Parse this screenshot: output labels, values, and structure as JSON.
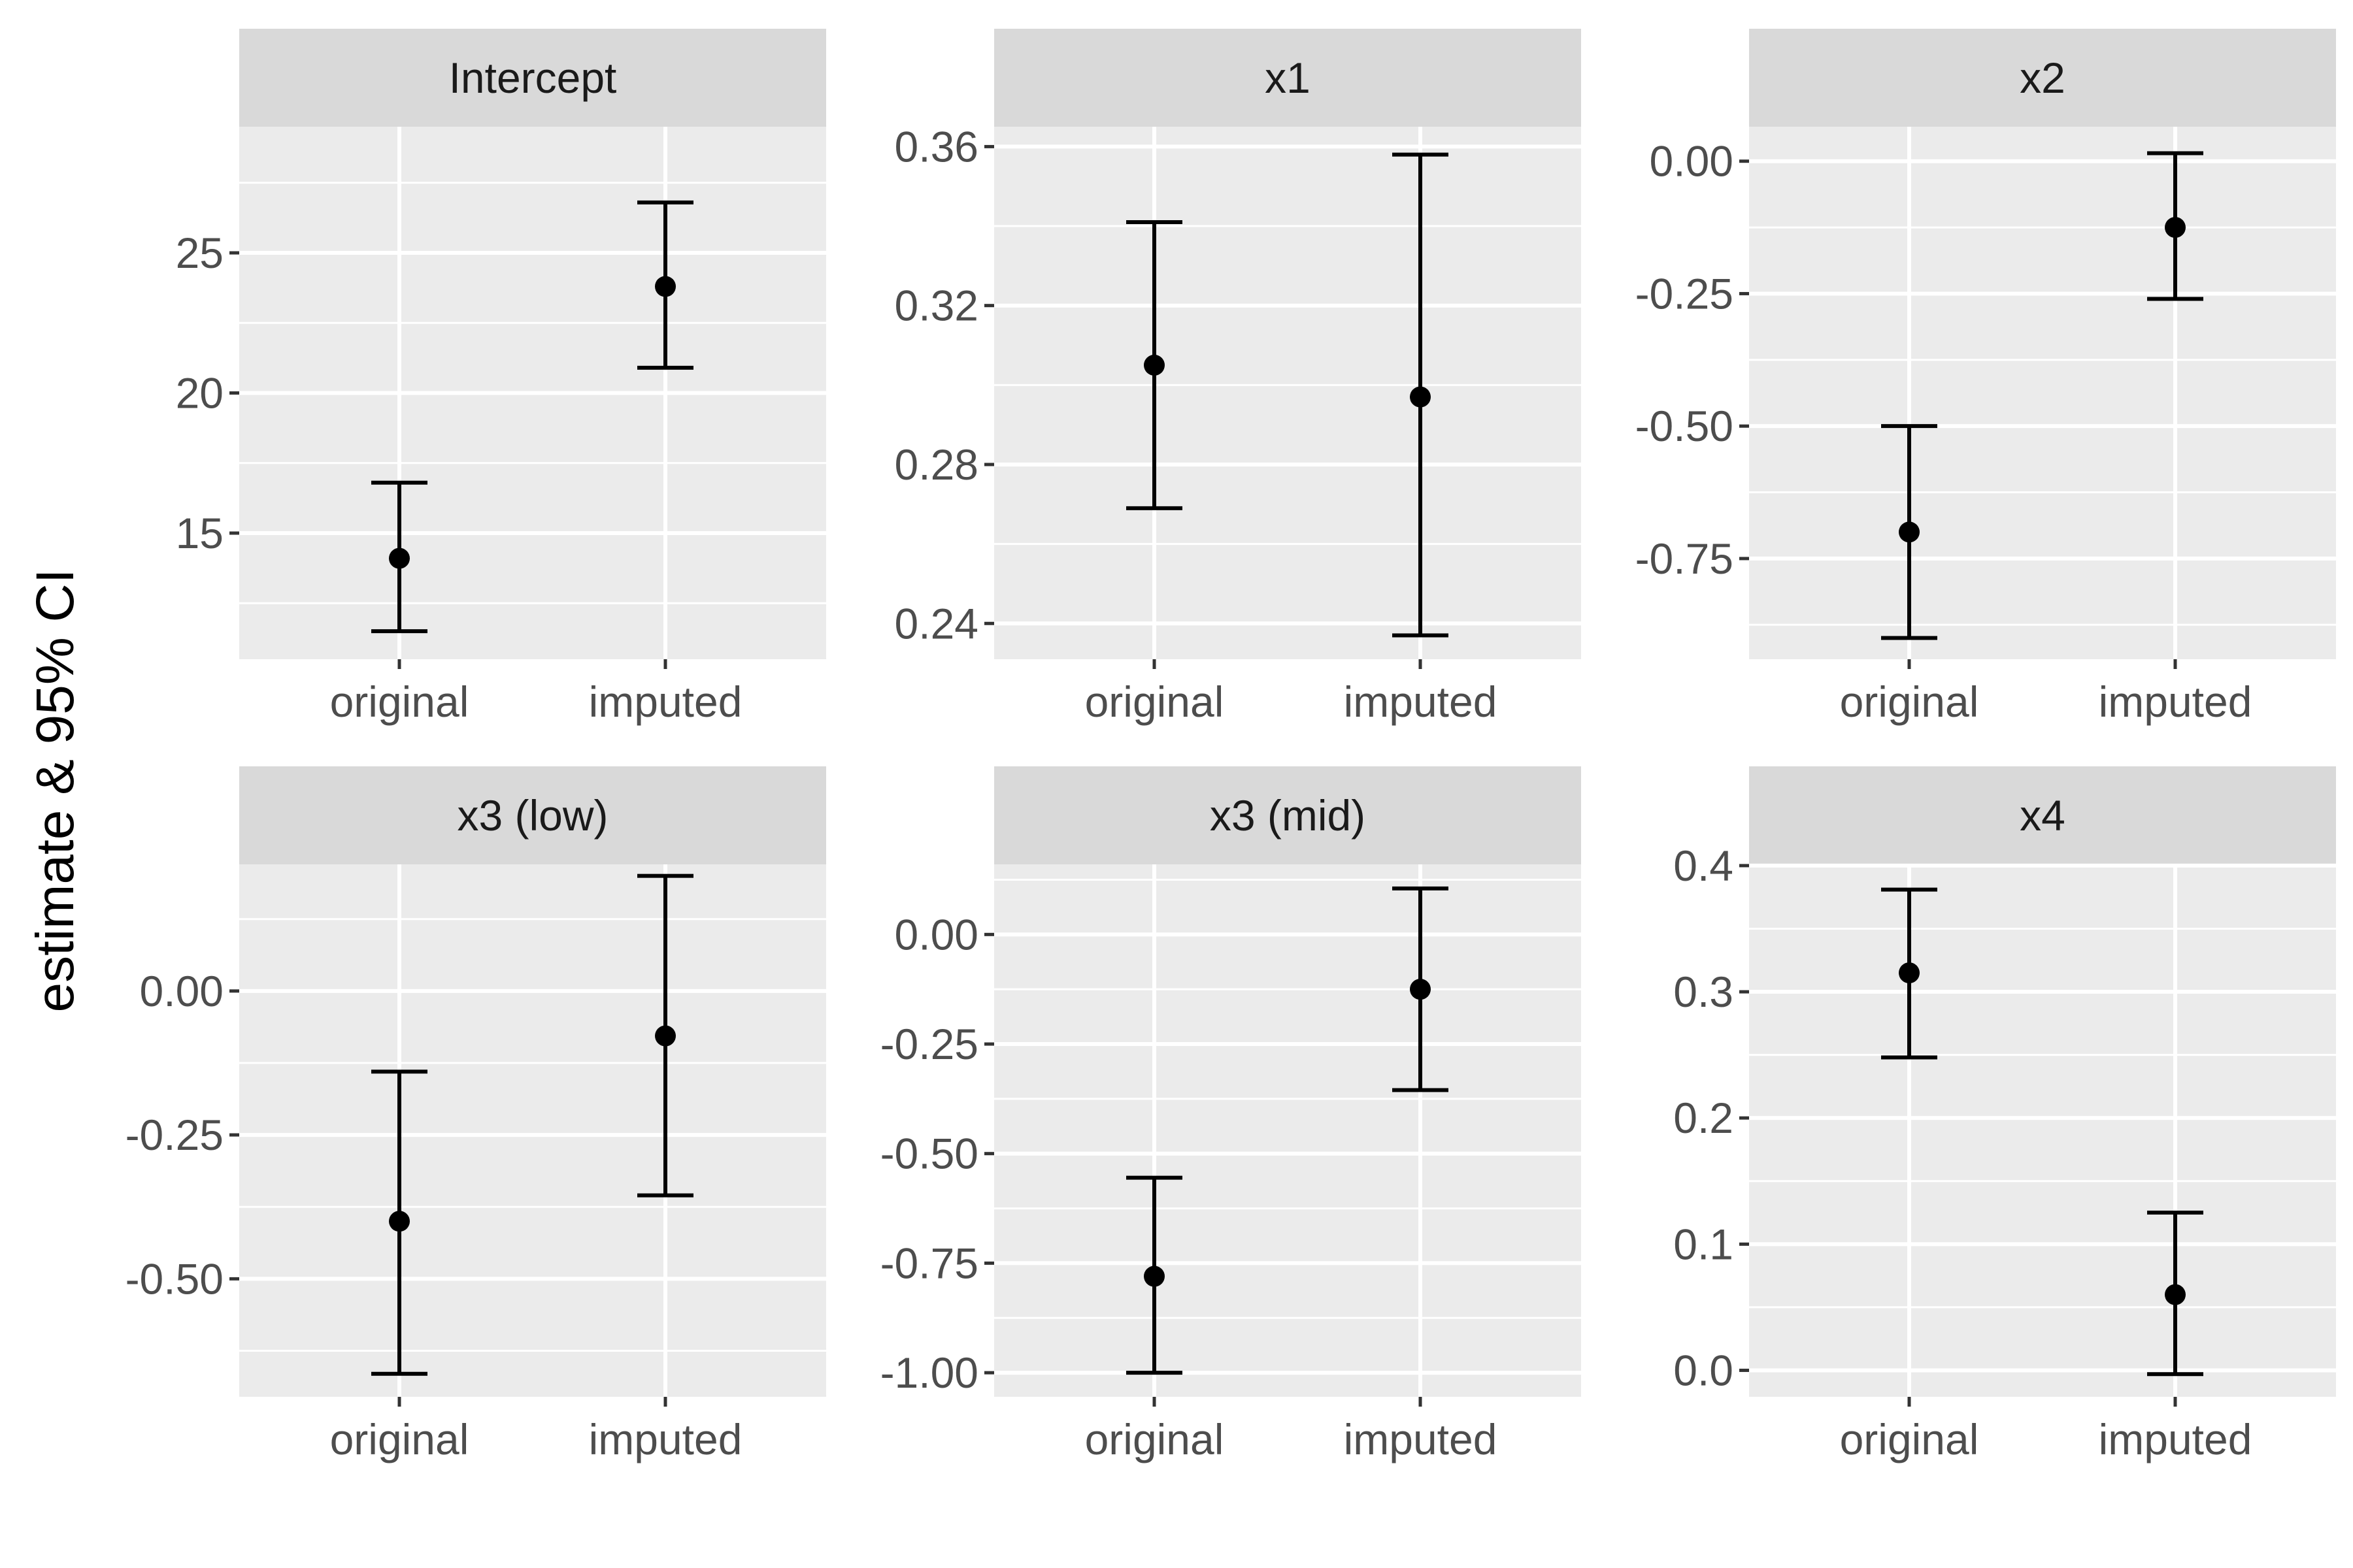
{
  "chart_data": {
    "type": "errorbar",
    "ylabel": "estimate & 95% CI",
    "categories": [
      "original",
      "imputed"
    ],
    "colors": {
      "panel_bg": "#EBEBEB",
      "strip_bg": "#D9D9D9",
      "grid": "#FFFFFF",
      "mark": "#000000"
    },
    "panels": [
      {
        "title": "Intercept",
        "ylim": [
          10.5,
          29.5
        ],
        "yticks": [
          15,
          20,
          25
        ],
        "ytick_labels": [
          "15",
          "20",
          "25"
        ],
        "points": [
          {
            "category": "original",
            "estimate": 14.1,
            "lower": 11.5,
            "upper": 16.8
          },
          {
            "category": "imputed",
            "estimate": 23.8,
            "lower": 20.9,
            "upper": 26.8
          }
        ]
      },
      {
        "title": "x1",
        "ylim": [
          0.231,
          0.365
        ],
        "yticks": [
          0.24,
          0.28,
          0.32,
          0.36
        ],
        "ytick_labels": [
          "0.24",
          "0.28",
          "0.32",
          "0.36"
        ],
        "points": [
          {
            "category": "original",
            "estimate": 0.305,
            "lower": 0.269,
            "upper": 0.341
          },
          {
            "category": "imputed",
            "estimate": 0.297,
            "lower": 0.237,
            "upper": 0.358
          }
        ]
      },
      {
        "title": "x2",
        "ylim": [
          -0.94,
          0.065
        ],
        "yticks": [
          -0.75,
          -0.5,
          -0.25,
          0.0
        ],
        "ytick_labels": [
          "-0.75",
          "-0.50",
          "-0.25",
          "0.00"
        ],
        "points": [
          {
            "category": "original",
            "estimate": -0.7,
            "lower": -0.9,
            "upper": -0.5
          },
          {
            "category": "imputed",
            "estimate": -0.125,
            "lower": -0.26,
            "upper": 0.015
          }
        ]
      },
      {
        "title": "x3 (low)",
        "ylim": [
          -0.705,
          0.22
        ],
        "yticks": [
          -0.5,
          -0.25,
          0.0
        ],
        "ytick_labels": [
          "-0.50",
          "-0.25",
          "0.00"
        ],
        "points": [
          {
            "category": "original",
            "estimate": -0.4,
            "lower": -0.665,
            "upper": -0.14
          },
          {
            "category": "imputed",
            "estimate": -0.078,
            "lower": -0.355,
            "upper": 0.2
          }
        ]
      },
      {
        "title": "x3 (mid)",
        "ylim": [
          -1.055,
          0.16
        ],
        "yticks": [
          -1.0,
          -0.75,
          -0.5,
          -0.25,
          0.0
        ],
        "ytick_labels": [
          "-1.00",
          "-0.75",
          "-0.50",
          "-0.25",
          "0.00"
        ],
        "points": [
          {
            "category": "original",
            "estimate": -0.78,
            "lower": -1.0,
            "upper": -0.555
          },
          {
            "category": "imputed",
            "estimate": -0.125,
            "lower": -0.355,
            "upper": 0.105
          }
        ]
      },
      {
        "title": "x4",
        "ylim": [
          -0.021,
          0.401
        ],
        "yticks": [
          0.0,
          0.1,
          0.2,
          0.3,
          0.4
        ],
        "ytick_labels": [
          "0.0",
          "0.1",
          "0.2",
          "0.3",
          "0.4"
        ],
        "points": [
          {
            "category": "original",
            "estimate": 0.315,
            "lower": 0.248,
            "upper": 0.381
          },
          {
            "category": "imputed",
            "estimate": 0.06,
            "lower": -0.003,
            "upper": 0.125
          }
        ]
      }
    ]
  }
}
